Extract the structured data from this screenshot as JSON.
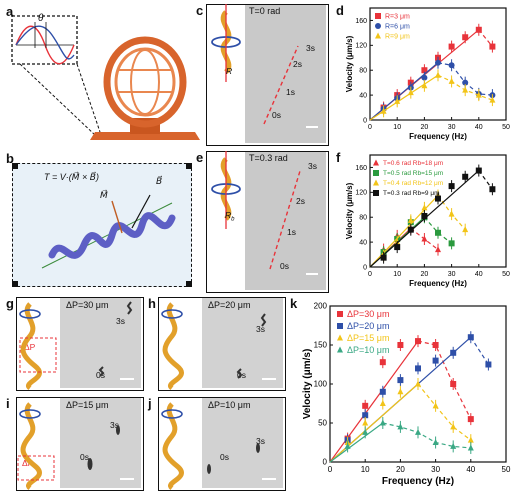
{
  "panels": {
    "a": {
      "letter": "a",
      "angle_symbol": "θ"
    },
    "b": {
      "letter": "b",
      "equation": "T = V·(M⃗ × B⃗)",
      "vec_B": "B⃗",
      "vec_M": "M⃗"
    },
    "c": {
      "letter": "c",
      "title": "T=0 rad",
      "radius_label": "R",
      "times": [
        "3s",
        "2s",
        "1s",
        "0s"
      ]
    },
    "e": {
      "letter": "e",
      "title": "T=0.3 rad",
      "radius_label": "R",
      "radius_sub": "b",
      "times": [
        "3s",
        "2s",
        "1s",
        "0s"
      ]
    },
    "g": {
      "letter": "g",
      "title": "ΔP=30 μm",
      "dp_label": "ΔP",
      "times": [
        "3s",
        "0s"
      ]
    },
    "h": {
      "letter": "h",
      "title": "ΔP=20 μm",
      "times": [
        "3s",
        "0s"
      ]
    },
    "i": {
      "letter": "i",
      "title": "ΔP=15 μm",
      "dp_label": "ΔP",
      "times": [
        "3s",
        "0s"
      ]
    },
    "j": {
      "letter": "j",
      "title": "ΔP=10 μm",
      "times": [
        "3s",
        "0s"
      ]
    }
  },
  "chart_data": [
    {
      "panel": "d",
      "type": "scatter",
      "xlabel": "Frequency (Hz)",
      "ylabel": "Velocity (μm/s)",
      "xlim": [
        0,
        50
      ],
      "ylim": [
        0,
        180
      ],
      "xticks": [
        0,
        10,
        20,
        30,
        40,
        50
      ],
      "yticks": [
        0,
        40,
        80,
        120,
        160
      ],
      "series": [
        {
          "name": "R=3 μm",
          "color": "#e8333a",
          "marker": "square",
          "x": [
            5,
            10,
            15,
            20,
            25,
            30,
            35,
            40,
            45
          ],
          "y": [
            20,
            40,
            60,
            80,
            100,
            118,
            133,
            145,
            118
          ]
        },
        {
          "name": "R=6 μm",
          "color": "#2e4fa8",
          "marker": "circle",
          "x": [
            5,
            10,
            15,
            20,
            25,
            30,
            35,
            40,
            45
          ],
          "y": [
            18,
            35,
            52,
            68,
            92,
            88,
            60,
            42,
            40
          ]
        },
        {
          "name": "R=9 μm",
          "color": "#f2c418",
          "marker": "triangle",
          "x": [
            5,
            10,
            15,
            20,
            25,
            30,
            35,
            40,
            45
          ],
          "y": [
            14,
            30,
            44,
            55,
            72,
            62,
            48,
            40,
            32
          ]
        }
      ]
    },
    {
      "panel": "f",
      "type": "scatter",
      "xlabel": "Frequency (Hz)",
      "ylabel": "Velocity (μm/s)",
      "xlim": [
        0,
        50
      ],
      "ylim": [
        0,
        180
      ],
      "xticks": [
        0,
        10,
        20,
        30,
        40,
        50
      ],
      "yticks": [
        0,
        40,
        80,
        120,
        160
      ],
      "series": [
        {
          "name": "T=0.6 rad R_b=18 μm",
          "color": "#e8333a",
          "marker": "triangle",
          "x": [
            5,
            10,
            15,
            20,
            25
          ],
          "y": [
            28,
            50,
            62,
            45,
            28
          ]
        },
        {
          "name": "T=0.5 rad R_b=15 μm",
          "color": "#2a9a3e",
          "marker": "square",
          "x": [
            5,
            10,
            15,
            20,
            25,
            30
          ],
          "y": [
            24,
            45,
            72,
            80,
            55,
            38
          ]
        },
        {
          "name": "T=0.4 rad R_b=12 μm",
          "color": "#f2c418",
          "marker": "triangle",
          "x": [
            5,
            10,
            15,
            20,
            25,
            30,
            35
          ],
          "y": [
            18,
            40,
            75,
            95,
            115,
            85,
            60
          ]
        },
        {
          "name": "T=0.3 rad R_b=9 μm",
          "color": "#111111",
          "marker": "square",
          "x": [
            5,
            10,
            15,
            20,
            25,
            30,
            35,
            40,
            45
          ],
          "y": [
            15,
            32,
            60,
            82,
            110,
            130,
            145,
            155,
            125
          ]
        }
      ]
    },
    {
      "panel": "k",
      "type": "scatter",
      "xlabel": "Frequency (Hz)",
      "ylabel": "Velocity (μm/s)",
      "xlim": [
        0,
        50
      ],
      "ylim": [
        0,
        200
      ],
      "xticks": [
        0,
        10,
        20,
        30,
        40,
        50
      ],
      "yticks": [
        0,
        50,
        100,
        150,
        200
      ],
      "series": [
        {
          "name": "ΔP=30 μm",
          "color": "#e8333a",
          "marker": "square",
          "x": [
            5,
            10,
            15,
            20,
            25,
            30,
            35,
            40
          ],
          "y": [
            30,
            72,
            128,
            150,
            155,
            150,
            100,
            55
          ]
        },
        {
          "name": "ΔP=20 μm",
          "color": "#2e4fa8",
          "marker": "square",
          "x": [
            5,
            10,
            15,
            20,
            25,
            30,
            35,
            40,
            45
          ],
          "y": [
            28,
            60,
            90,
            105,
            120,
            130,
            140,
            160,
            125
          ]
        },
        {
          "name": "ΔP=15 μm",
          "color": "#f2c418",
          "marker": "triangle",
          "x": [
            5,
            10,
            15,
            20,
            25,
            30,
            35,
            40
          ],
          "y": [
            25,
            50,
            75,
            90,
            100,
            72,
            45,
            28
          ]
        },
        {
          "name": "ΔP=10 μm",
          "color": "#3aa884",
          "marker": "triangle",
          "x": [
            5,
            10,
            15,
            20,
            25,
            30,
            35,
            40
          ],
          "y": [
            20,
            38,
            50,
            45,
            38,
            25,
            20,
            18
          ]
        }
      ]
    }
  ]
}
